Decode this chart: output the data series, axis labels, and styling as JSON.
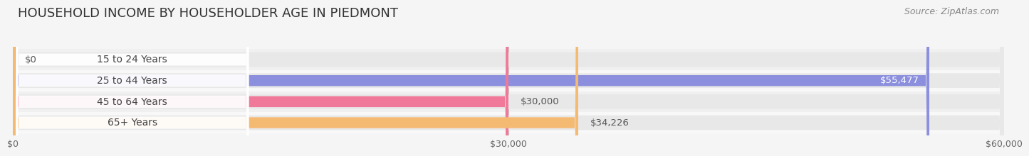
{
  "title": "HOUSEHOLD INCOME BY HOUSEHOLDER AGE IN PIEDMONT",
  "source": "Source: ZipAtlas.com",
  "categories": [
    "15 to 24 Years",
    "25 to 44 Years",
    "45 to 64 Years",
    "65+ Years"
  ],
  "values": [
    0,
    55477,
    30000,
    34226
  ],
  "value_labels": [
    "$0",
    "$55,477",
    "$30,000",
    "$34,226"
  ],
  "bar_colors": [
    "#62cece",
    "#8b8fdd",
    "#f07898",
    "#f5ba72"
  ],
  "bar_bg_color": "#e8e8e8",
  "xlim": [
    0,
    60000
  ],
  "xtick_values": [
    0,
    30000,
    60000
  ],
  "xtick_labels": [
    "$0",
    "$30,000",
    "$60,000"
  ],
  "title_fontsize": 13,
  "source_fontsize": 9,
  "label_fontsize": 10,
  "value_fontsize": 9.5,
  "background_color": "#f5f5f5",
  "row_bg_color": "#ececec",
  "bar_height": 0.52,
  "bg_bar_height": 0.7,
  "label_pill_color": "#ffffff",
  "value_label_inside_color": "#ffffff",
  "value_label_outside_color": "#555555"
}
